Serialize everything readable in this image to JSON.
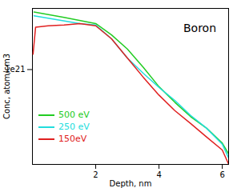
{
  "chart_data": {
    "type": "line",
    "title": "Boron",
    "x_label": "Depth, nm",
    "y_label": "Conc, atom/cm3",
    "log": "y",
    "xlim": [
      0,
      6.2
    ],
    "xticks": [
      2,
      4,
      6
    ],
    "ylim": [
      1.5e+20,
      3.4e+21
    ],
    "yticks": [
      {
        "value": 1e+21,
        "label": "1e21"
      }
    ],
    "legend": "bottom-left",
    "series": [
      {
        "name": "500 eV",
        "color": "#22cc22",
        "x": [
          0.05,
          1.0,
          2.0,
          2.5,
          3.0,
          3.5,
          4.0,
          4.5,
          5.0,
          5.5,
          6.0,
          6.2
        ],
        "values": [
          3.16e+21,
          2.84e+21,
          2.51e+21,
          2e+21,
          1.51e+21,
          1.05e+21,
          7.1e+20,
          5.2e+20,
          3.9e+20,
          3.1e+20,
          2.3e+20,
          1.85e+20
        ]
      },
      {
        "name": "250 eV",
        "color": "#22dddd",
        "x": [
          0.05,
          1.5,
          2.0,
          2.5,
          3.0,
          3.5,
          4.0,
          4.5,
          5.0,
          5.5,
          6.0,
          6.2
        ],
        "values": [
          2.93e+21,
          2.51e+21,
          2.44e+21,
          1.85e+21,
          1.26e+21,
          9.3e+20,
          7e+20,
          5.4e+20,
          4e+20,
          3.1e+20,
          2.25e+20,
          1.71e+20
        ]
      },
      {
        "name": "150eV",
        "color": "#e02020",
        "x": [
          0.02,
          0.1,
          0.5,
          1.0,
          1.5,
          2.0,
          2.5,
          3.0,
          3.5,
          4.0,
          4.5,
          5.0,
          5.5,
          6.0,
          6.2
        ],
        "values": [
          1.36e+21,
          2.33e+21,
          2.4e+21,
          2.44e+21,
          2.51e+21,
          2.4e+21,
          1.85e+21,
          1.26e+21,
          8.6e+20,
          6e+20,
          4.4e+20,
          3.4e+20,
          2.6e+20,
          2e+20,
          1.51e+20
        ]
      }
    ]
  }
}
